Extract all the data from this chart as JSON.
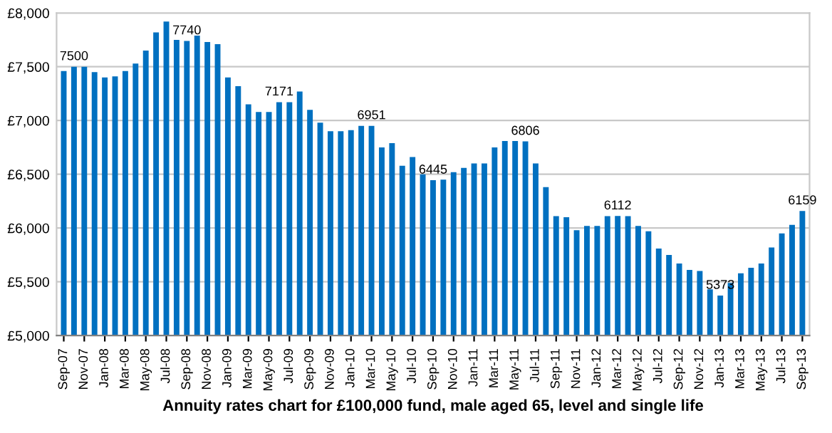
{
  "chart_data": {
    "type": "bar",
    "xlabel": "Annuity rates chart for £100,000 fund, male aged 65, level and single life",
    "categories": [
      "Sep-07",
      null,
      "Nov-07",
      null,
      "Jan-08",
      null,
      "Mar-08",
      null,
      "May-08",
      null,
      "Jul-08",
      null,
      "Sep-08",
      null,
      "Nov-08",
      null,
      "Jan-09",
      null,
      "Mar-09",
      null,
      "May-09",
      null,
      "Jul-09",
      null,
      "Sep-09",
      null,
      "Nov-09",
      null,
      "Jan-10",
      null,
      "Mar-10",
      null,
      "May-10",
      null,
      "Jul-10",
      null,
      "Sep-10",
      null,
      "Nov-10",
      null,
      "Jan-11",
      null,
      "Mar-11",
      null,
      "May-11",
      null,
      "Jul-11",
      null,
      "Sep-11",
      null,
      "Nov-11",
      null,
      "Jan-12",
      null,
      "Mar-12",
      null,
      "May-12",
      null,
      "Jul-12",
      null,
      "Sep-12",
      null,
      "Nov-12",
      null,
      "Jan-13",
      null,
      "Mar-13",
      null,
      "May-13",
      null,
      "Jul-13",
      null,
      "Sep-13"
    ],
    "values": [
      7460,
      7500,
      7500,
      7450,
      7400,
      7410,
      7460,
      7530,
      7650,
      7820,
      7920,
      7750,
      7740,
      7790,
      7730,
      7710,
      7400,
      7320,
      7150,
      7080,
      7080,
      7171,
      7170,
      7270,
      7100,
      6980,
      6900,
      6900,
      6910,
      6950,
      6951,
      6750,
      6790,
      6580,
      6660,
      6500,
      6445,
      6450,
      6520,
      6560,
      6600,
      6600,
      6750,
      6810,
      6810,
      6806,
      6600,
      6380,
      6110,
      6100,
      5980,
      6020,
      6020,
      6110,
      6112,
      6110,
      6020,
      5970,
      5810,
      5750,
      5670,
      5610,
      5600,
      5430,
      5373,
      5490,
      5580,
      5630,
      5670,
      5820,
      5950,
      6030,
      6159
    ],
    "value_labels": [
      null,
      "7500",
      null,
      null,
      null,
      null,
      null,
      null,
      null,
      null,
      null,
      null,
      "7740",
      null,
      null,
      null,
      null,
      null,
      null,
      null,
      null,
      "7171",
      null,
      null,
      null,
      null,
      null,
      null,
      null,
      null,
      "6951",
      null,
      null,
      null,
      null,
      null,
      "6445",
      null,
      null,
      null,
      null,
      null,
      null,
      null,
      null,
      "6806",
      null,
      null,
      null,
      null,
      null,
      null,
      null,
      null,
      "6112",
      null,
      null,
      null,
      null,
      null,
      null,
      null,
      null,
      null,
      "5373",
      null,
      null,
      null,
      null,
      null,
      null,
      null,
      "6159"
    ],
    "color": "#0070c0",
    "ylim": [
      5000,
      8000
    ],
    "yticks": [
      {
        "value": 5000,
        "label": "£5,000"
      },
      {
        "value": 5500,
        "label": "£5,500"
      },
      {
        "value": 6000,
        "label": "£6,000"
      },
      {
        "value": 6500,
        "label": "£6,500"
      },
      {
        "value": 7000,
        "label": "£7,000"
      },
      {
        "value": 7500,
        "label": "£7,500"
      },
      {
        "value": 8000,
        "label": "£8,000"
      }
    ],
    "grid": "y",
    "legend": false
  }
}
